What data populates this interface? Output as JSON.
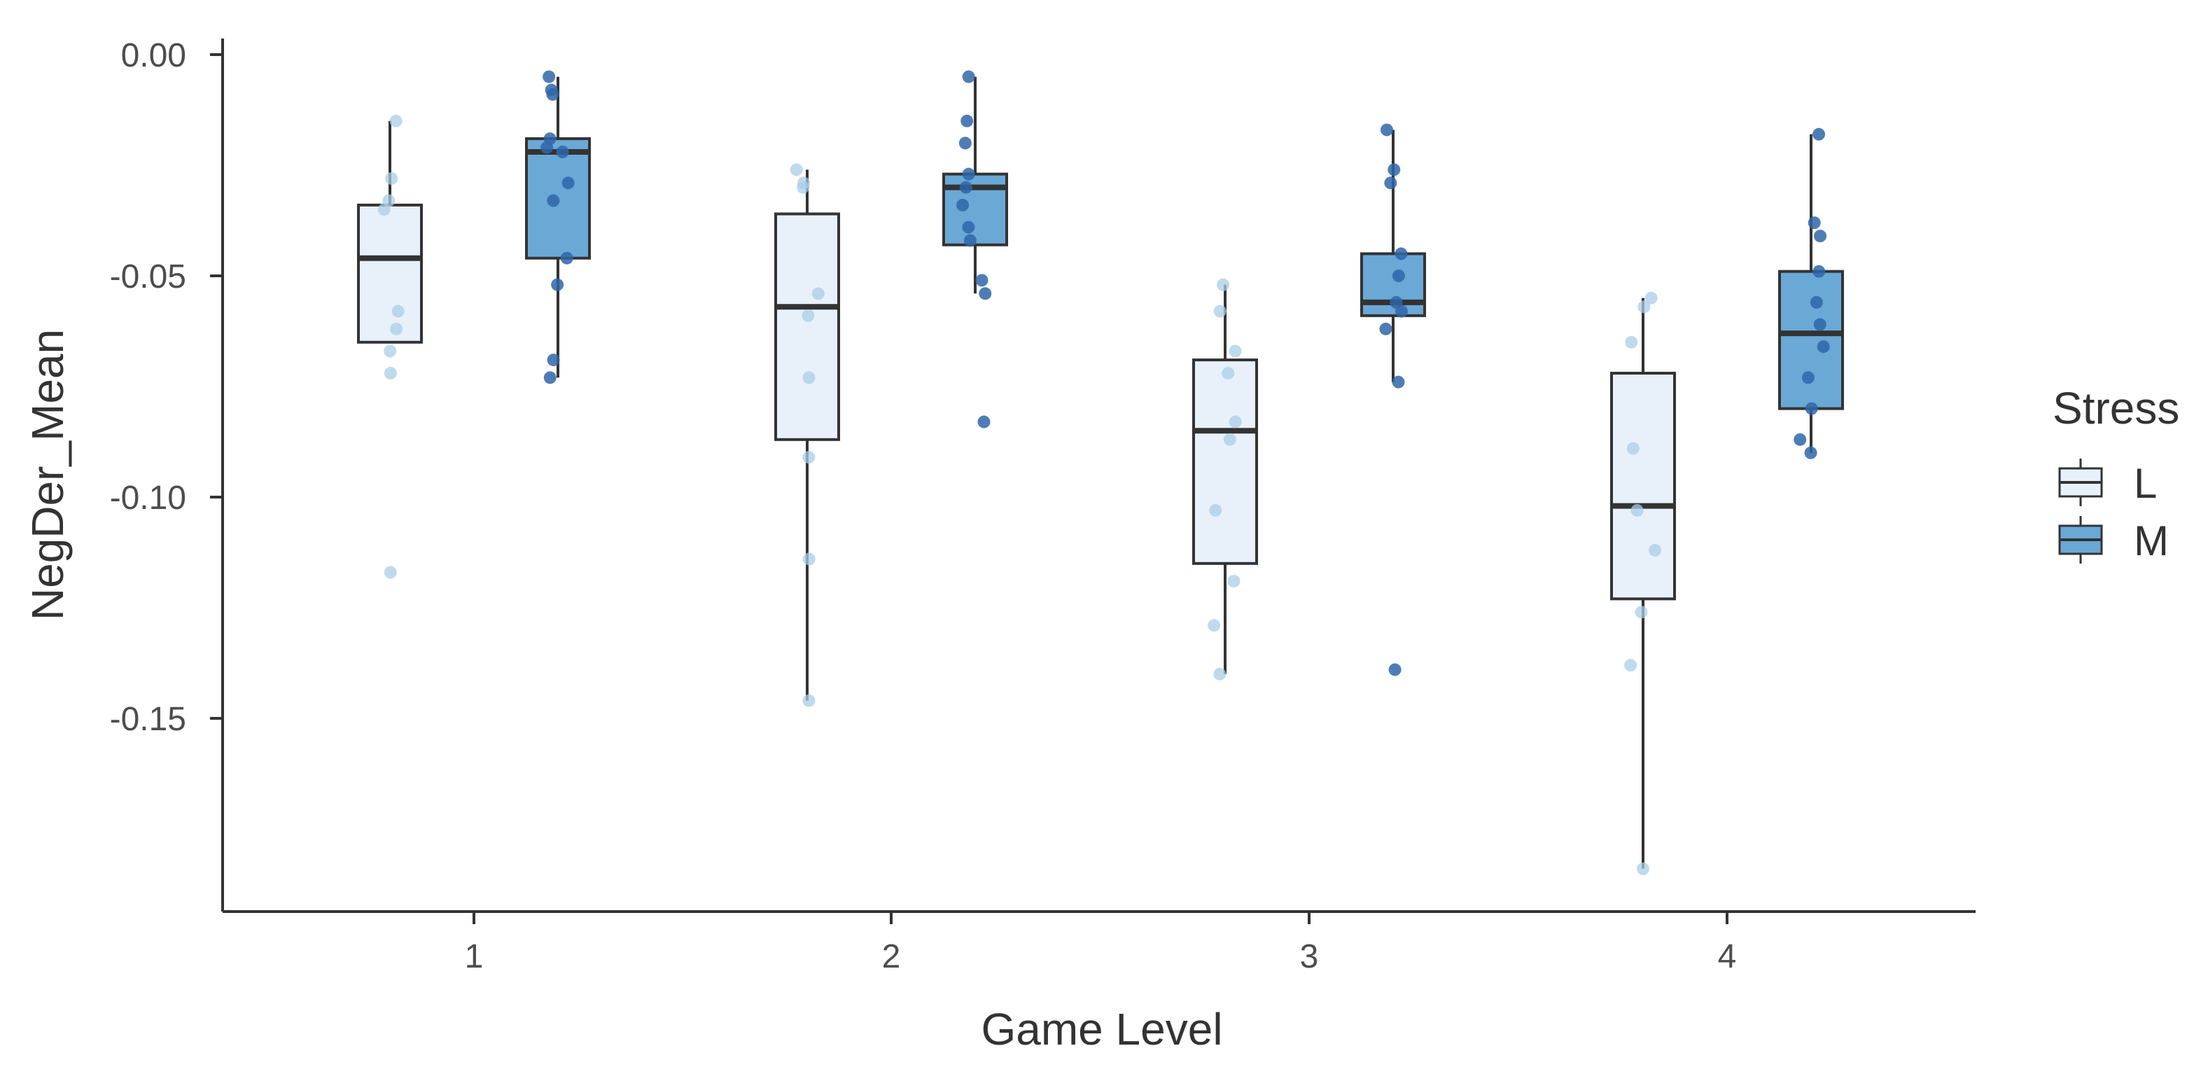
{
  "chart_data": {
    "type": "boxplot",
    "title": "",
    "xlabel": "Game Level",
    "ylabel": "NegDer_Mean",
    "ylim": [
      -0.195,
      0.003
    ],
    "y_ticks": [
      0.0,
      -0.05,
      -0.1,
      -0.15
    ],
    "y_tick_labels": [
      "0.00",
      "-0.05",
      "-0.10",
      "-0.15"
    ],
    "categories": [
      "1",
      "2",
      "3",
      "4"
    ],
    "legend": {
      "title": "Stress",
      "position": "right",
      "entries": [
        {
          "label": "L",
          "color": "#e8f1f9"
        },
        {
          "label": "M",
          "color": "#6aa8d6"
        }
      ]
    },
    "colors": {
      "L_fill": "#e8f1f9",
      "M_fill": "#6aa8d6",
      "L_point": "#a9cde7",
      "M_point": "#2f66a8",
      "stroke": "#333333",
      "text": "#333333"
    },
    "series": [
      {
        "name": "L",
        "boxes": [
          {
            "category": "1",
            "whisker_low": -0.065,
            "q1": -0.065,
            "median": -0.046,
            "q3": -0.034,
            "whisker_high": -0.015,
            "points": [
              -0.015,
              -0.028,
              -0.033,
              -0.035,
              -0.058,
              -0.062,
              -0.067,
              -0.072,
              -0.117
            ]
          },
          {
            "category": "2",
            "whisker_low": -0.146,
            "q1": -0.087,
            "median": -0.057,
            "q3": -0.036,
            "whisker_high": -0.026,
            "points": [
              -0.026,
              -0.029,
              -0.03,
              -0.054,
              -0.059,
              -0.073,
              -0.091,
              -0.114,
              -0.146
            ]
          },
          {
            "category": "3",
            "whisker_low": -0.14,
            "q1": -0.115,
            "median": -0.085,
            "q3": -0.069,
            "whisker_high": -0.052,
            "points": [
              -0.052,
              -0.058,
              -0.067,
              -0.072,
              -0.083,
              -0.087,
              -0.103,
              -0.119,
              -0.129,
              -0.14
            ]
          },
          {
            "category": "4",
            "whisker_low": -0.184,
            "q1": -0.123,
            "median": -0.102,
            "q3": -0.072,
            "whisker_high": -0.055,
            "points": [
              -0.055,
              -0.057,
              -0.065,
              -0.089,
              -0.103,
              -0.112,
              -0.126,
              -0.138,
              -0.184
            ]
          }
        ]
      },
      {
        "name": "M",
        "boxes": [
          {
            "category": "1",
            "whisker_low": -0.073,
            "q1": -0.046,
            "median": -0.022,
            "q3": -0.019,
            "whisker_high": -0.005,
            "points": [
              -0.005,
              -0.008,
              -0.009,
              -0.019,
              -0.021,
              -0.022,
              -0.029,
              -0.033,
              -0.046,
              -0.052,
              -0.069,
              -0.073
            ]
          },
          {
            "category": "2",
            "whisker_low": -0.054,
            "q1": -0.043,
            "median": -0.03,
            "q3": -0.027,
            "whisker_high": -0.005,
            "points": [
              -0.005,
              -0.015,
              -0.02,
              -0.027,
              -0.03,
              -0.034,
              -0.039,
              -0.042,
              -0.051,
              -0.054,
              -0.083
            ]
          },
          {
            "category": "3",
            "whisker_low": -0.074,
            "q1": -0.059,
            "median": -0.056,
            "q3": -0.045,
            "whisker_high": -0.017,
            "points": [
              -0.017,
              -0.026,
              -0.029,
              -0.045,
              -0.05,
              -0.056,
              -0.058,
              -0.062,
              -0.074,
              -0.139
            ]
          },
          {
            "category": "4",
            "whisker_low": -0.09,
            "q1": -0.08,
            "median": -0.063,
            "q3": -0.049,
            "whisker_high": -0.018,
            "points": [
              -0.018,
              -0.038,
              -0.041,
              -0.049,
              -0.056,
              -0.061,
              -0.066,
              -0.073,
              -0.08,
              -0.087,
              -0.09
            ]
          }
        ]
      }
    ]
  }
}
